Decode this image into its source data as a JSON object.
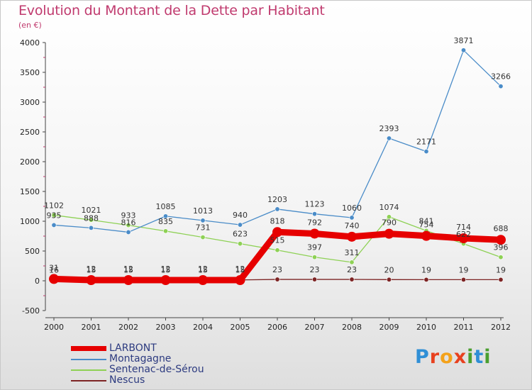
{
  "title": "Evolution du Montant de la Dette par Habitant",
  "subtitle": "(en €)",
  "logo": {
    "text": "Proxiti",
    "letter_colors": [
      "#2f8fd6",
      "#e8411f",
      "#f4a21a",
      "#e8411f",
      "#4a9f2f",
      "#2f8fd6",
      "#4a9f2f"
    ]
  },
  "chart_data": {
    "type": "line",
    "title": "Evolution du Montant de la Dette par Habitant",
    "subtitle": "(en €)",
    "xlabel": "",
    "ylabel": "",
    "x": [
      "2000",
      "2001",
      "2002",
      "2003",
      "2004",
      "2005",
      "2006",
      "2007",
      "2008",
      "2009",
      "2010",
      "2011",
      "2012"
    ],
    "ylim": [
      -500,
      4000
    ],
    "yticks": [
      -500,
      0,
      500,
      1000,
      1500,
      2000,
      2500,
      3000,
      3500,
      4000
    ],
    "ytick_labels": [
      "-500",
      "0",
      "500",
      "1000",
      "1500",
      "2000",
      "2500",
      "3000",
      "3500",
      "4000"
    ],
    "grid": false,
    "legend_position": "bottom-left",
    "series": [
      {
        "name": "LARBONT",
        "color": "#e60000",
        "emphasis": "thick",
        "values": [
          31,
          12,
          12,
          12,
          12,
          12,
          818,
          792,
          740,
          790,
          754,
          714,
          688
        ],
        "labels": [
          "31",
          "12",
          "12",
          "12",
          "12",
          "12",
          "818",
          "792",
          "740",
          "790",
          "754",
          "714",
          "688"
        ]
      },
      {
        "name": "Montagagne",
        "color": "#4a8cc8",
        "values": [
          935,
          888,
          816,
          1085,
          1013,
          940,
          1203,
          1123,
          1060,
          2393,
          2171,
          3871,
          3266
        ],
        "labels": [
          "935",
          "888",
          "816",
          "1085",
          "1013",
          "940",
          "1203",
          "1123",
          "1060",
          "2393",
          "2171",
          "3871",
          "3266"
        ]
      },
      {
        "name": "Sentenac-de-Sérou",
        "color": "#8ed155",
        "values": [
          1102,
          1021,
          933,
          835,
          731,
          623,
          515,
          397,
          311,
          1074,
          841,
          622,
          396
        ],
        "labels": [
          "1102",
          "1021",
          "933",
          "835",
          "731",
          "623",
          "515",
          "397",
          "311",
          "1074",
          "841",
          "622",
          "396"
        ]
      },
      {
        "name": "Nescus",
        "color": "#7d2424",
        "values": [
          16,
          15,
          15,
          15,
          15,
          15,
          23,
          23,
          23,
          20,
          19,
          19,
          19
        ],
        "labels": [
          "16",
          "15",
          "15",
          "15",
          "15",
          "15",
          "23",
          "23",
          "23",
          "20",
          "19",
          "19",
          "19"
        ]
      }
    ]
  }
}
